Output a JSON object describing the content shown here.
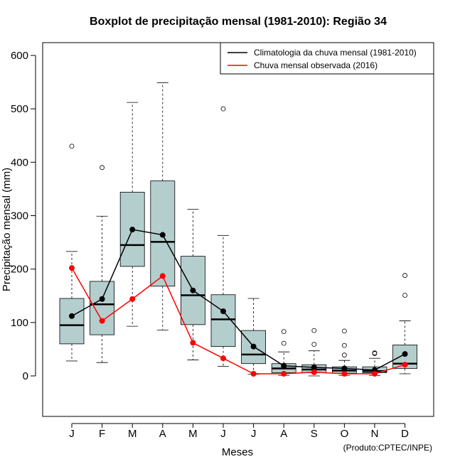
{
  "chart_data": {
    "type": "boxplot",
    "title": "Boxplot de precipitação mensal (1981-2010): Região 34",
    "xlabel": "Meses",
    "ylabel": "Precipitação mensal (mm)",
    "ylim": [
      -75,
      625
    ],
    "yticks": [
      0,
      100,
      200,
      300,
      400,
      500,
      600
    ],
    "categories": [
      "J",
      "F",
      "M",
      "A",
      "M",
      "J",
      "J",
      "A",
      "S",
      "O",
      "N",
      "D"
    ],
    "boxes": [
      {
        "min": 28,
        "q1": 60,
        "median": 95,
        "q3": 145,
        "max": 233,
        "outliers": [
          430
        ]
      },
      {
        "min": 25,
        "q1": 77,
        "median": 134,
        "q3": 177,
        "max": 299,
        "outliers": [
          390
        ]
      },
      {
        "min": 93,
        "q1": 205,
        "median": 245,
        "q3": 344,
        "max": 512,
        "outliers": []
      },
      {
        "min": 86,
        "q1": 168,
        "median": 251,
        "q3": 365,
        "max": 549,
        "outliers": []
      },
      {
        "min": 30,
        "q1": 96,
        "median": 151,
        "q3": 224,
        "max": 312,
        "outliers": []
      },
      {
        "min": 18,
        "q1": 55,
        "median": 106,
        "q3": 152,
        "max": 263,
        "outliers": [
          500
        ]
      },
      {
        "min": 3,
        "q1": 23,
        "median": 40,
        "q3": 85,
        "max": 145,
        "outliers": []
      },
      {
        "min": 1,
        "q1": 6,
        "median": 14,
        "q3": 23,
        "max": 45,
        "outliers": [
          61,
          83
        ]
      },
      {
        "min": 0,
        "q1": 6,
        "median": 12,
        "q3": 21,
        "max": 47,
        "outliers": [
          59,
          85
        ]
      },
      {
        "min": 1,
        "q1": 5,
        "median": 10,
        "q3": 17,
        "max": 29,
        "outliers": [
          39,
          57,
          84
        ]
      },
      {
        "min": 1,
        "q1": 6,
        "median": 9,
        "q3": 17,
        "max": 33,
        "outliers": [
          42,
          43
        ]
      },
      {
        "min": 4,
        "q1": 14,
        "median": 23,
        "q3": 58,
        "max": 103,
        "outliers": [
          151,
          188
        ]
      }
    ],
    "series": [
      {
        "name": "Climatologia da chuva mensal (1981-2010)",
        "color": "#000000",
        "values": [
          112,
          144,
          274,
          264,
          160,
          121,
          55,
          19,
          16,
          14,
          11,
          41
        ]
      },
      {
        "name": "Chuva mensal observada (2016)",
        "color": "#ff0000",
        "values": [
          202,
          103,
          144,
          187,
          62,
          33,
          4,
          4,
          7,
          4,
          4,
          21
        ]
      }
    ],
    "legend_position": "top-right",
    "box_fill": "#b4cece",
    "credit": "(Produto:CPTEC/INPE)"
  }
}
